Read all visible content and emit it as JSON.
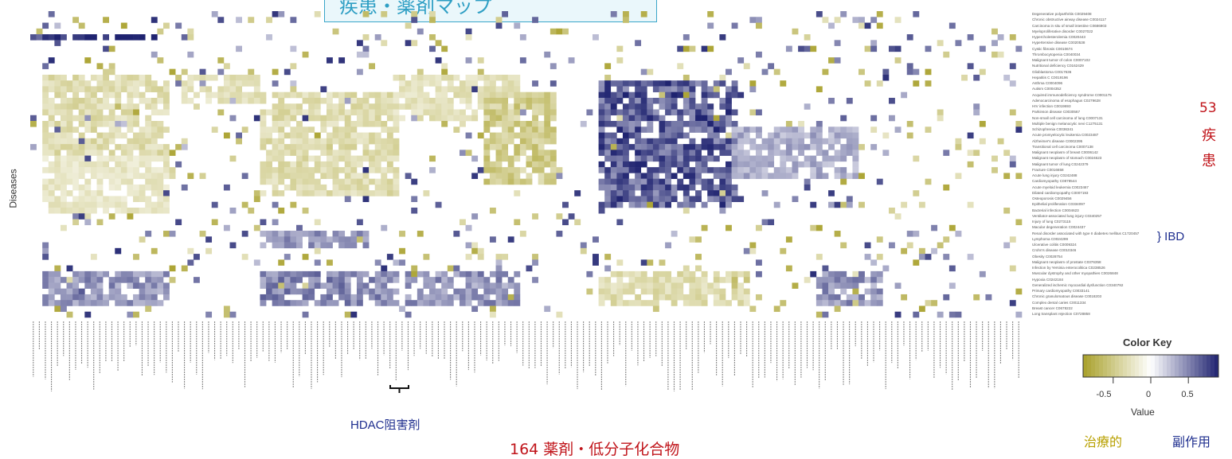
{
  "chart_data": {
    "type": "heatmap",
    "title": "",
    "ylabel": "Diseases",
    "rows": [
      "Degenerative polyarthritis C0029408",
      "Chronic obstructive airway disease C0024117",
      "Carcinoma in situ of small intestine C0686903",
      "Myeloproliferative disorder C0027022",
      "Hypercholesterolemia C0020443",
      "Hypertensive disease C0020538",
      "Cystic fibrosis C0010674",
      "Thrombocytopenia C0040034",
      "Malignant tumor of colon C0007102",
      "Nutritional deficiency C0162429",
      "Glioblastoma C0017636",
      "Hepatitis C C0019196",
      "Asthma C0004096",
      "Autism C0004352",
      "Acquired immunodeficiency syndrome C0001175",
      "Adenocarcinoma of esophagus C0279628",
      "HIV infection C0019693",
      "Parkinson disease C0030567",
      "Non-small cell carcinoma of lung C0007131",
      "Multiple benign melanocytic nevi C1275131",
      "Schizophrenia C0036341",
      "Acute promyelocytic leukemia C0023487",
      "Alzheimer's disease C0002395",
      "Transitional cell carcinoma C0007138",
      "Malignant neoplasm of breast C0006142",
      "Malignant neoplasm of stomach C0024623",
      "Malignant tumor of lung C0242379",
      "Fracture C0016658",
      "Acute lung injury C0242488",
      "Cardiomyopathy C0878544",
      "Acute myeloid leukemia C0023467",
      "Dilated cardiomyopathy C0007193",
      "Osteoporosis C0029456",
      "Epithelial proliferation C0334097",
      "Bacterial infection C0004623",
      "Ventilator-associated lung injury C0340257",
      "Injury of lung C0273115",
      "Macular degeneration C0024437",
      "Renal disorder associated with type II diabetes mellitus C1720457",
      "Lymphoma C0024299",
      "Ulcerative colitis C0009324",
      "Crohn's disease C0010346",
      "Obesity C0028754",
      "Malignant neoplasm of prostate C0376358",
      "Infection by Yersinia enterocolitica C0238526",
      "Muscular dystrophy and other myopathies C0026848",
      "Hypoxia C0242184",
      "Generalized ischemic myocardial dysfunction C0340792",
      "Primary cardiomyopathy C0033141",
      "Chronic granulomatous disease C0018203",
      "Complex dental caries C0011334",
      "Breast cancer C0678222",
      "Long transplant rejection C0728858"
    ],
    "columns_count": 164,
    "xlabel": "164 薬剤・低分子化合物",
    "color_key": {
      "title": "Color Key",
      "xlabel": "Value",
      "ticks": [
        "-0.5",
        "0",
        "0.5"
      ],
      "range": [
        -0.9,
        0.9
      ],
      "low_color": "#a8a02a",
      "mid_color": "#ffffff",
      "high_color": "#1f2370"
    },
    "blocks": [
      {
        "cols": [
          2,
          22
        ],
        "rows": [
          11,
          24
        ],
        "value": -0.35
      },
      {
        "cols": [
          2,
          22
        ],
        "rows": [
          25,
          34
        ],
        "value": -0.25
      },
      {
        "cols": [
          2,
          22
        ],
        "rows": [
          45,
          50
        ],
        "value": 0.45
      },
      {
        "cols": [
          0,
          20
        ],
        "rows": [
          4,
          4
        ],
        "value": 0.9
      },
      {
        "cols": [
          25,
          37
        ],
        "rows": [
          11,
          15
        ],
        "value": -0.3
      },
      {
        "cols": [
          38,
          60
        ],
        "rows": [
          14,
          31
        ],
        "value": -0.35
      },
      {
        "cols": [
          38,
          60
        ],
        "rows": [
          45,
          50
        ],
        "value": 0.5
      },
      {
        "cols": [
          38,
          55
        ],
        "rows": [
          38,
          40
        ],
        "value": 0.45
      },
      {
        "cols": [
          60,
          80
        ],
        "rows": [
          11,
          18
        ],
        "value": -0.3
      },
      {
        "cols": [
          62,
          80
        ],
        "rows": [
          45,
          50
        ],
        "value": 0.45
      },
      {
        "cols": [
          75,
          86
        ],
        "rows": [
          14,
          29
        ],
        "value": -0.5
      },
      {
        "cols": [
          94,
          116
        ],
        "rows": [
          12,
          33
        ],
        "value": 0.7
      },
      {
        "cols": [
          94,
          118
        ],
        "rows": [
          45,
          50
        ],
        "value": -0.35
      },
      {
        "cols": [
          116,
          136
        ],
        "rows": [
          20,
          28
        ],
        "value": 0.35
      },
      {
        "cols": [
          130,
          140
        ],
        "rows": [
          45,
          50
        ],
        "value": 0.45
      }
    ]
  },
  "title_text": "疾患・薬剤マップ",
  "counts": {
    "diseases_number": "53",
    "diseases_char1": "疾",
    "diseases_char2": "患"
  },
  "annotations": {
    "ibd": "} IBD",
    "hdac": "HDAC阻害剤"
  },
  "legend_bottom": {
    "therapeutic": "治療的",
    "side_effect": "副作用"
  }
}
